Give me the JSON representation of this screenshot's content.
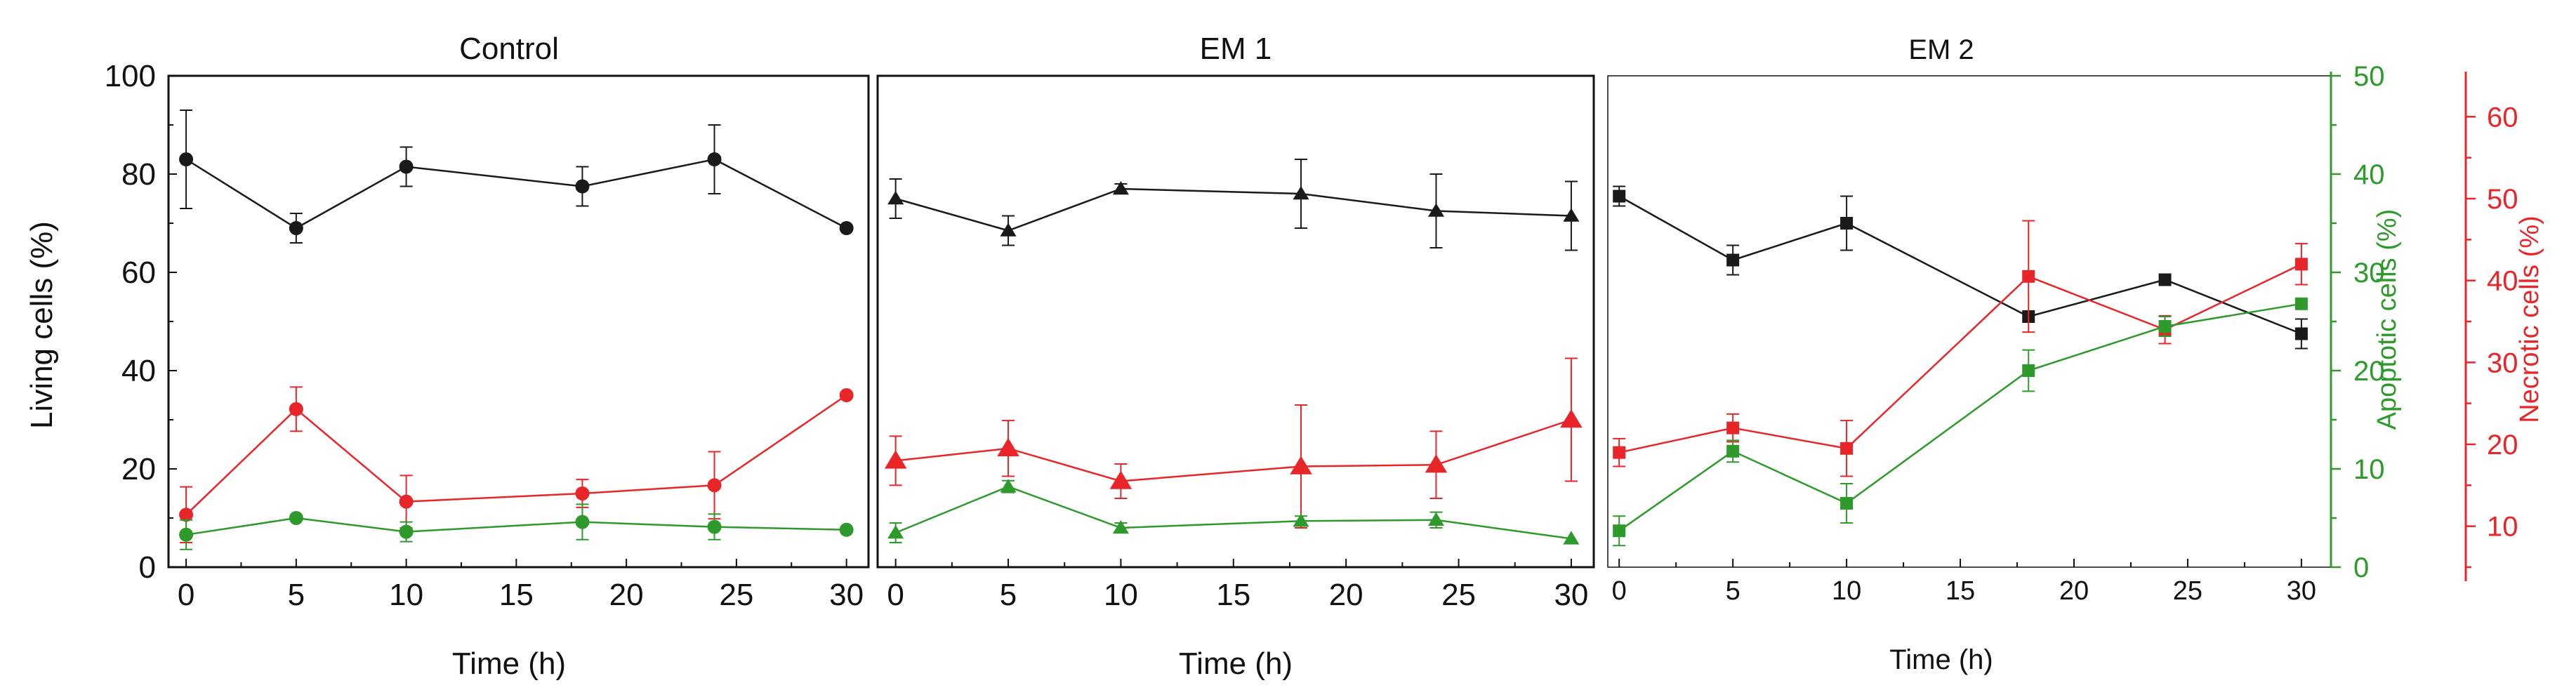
{
  "chart_data": [
    {
      "type": "line",
      "title": "Control",
      "xlabel": "Time (h)",
      "ylabel": "Living cells (%)",
      "xlim": [
        -0.8,
        31
      ],
      "ylim": [
        0,
        100
      ],
      "xticks": [
        "0",
        "5",
        "10",
        "15",
        "20",
        "25",
        "30"
      ],
      "yticks": [
        "0",
        "20",
        "40",
        "60",
        "80",
        "100"
      ],
      "x": [
        0,
        5,
        10,
        18,
        24,
        30
      ],
      "series": [
        {
          "color": "#1a1a1a",
          "marker": "circle",
          "axis": "living",
          "values": [
            83,
            69,
            81.5,
            77.5,
            83,
            69
          ],
          "errors": [
            10,
            3,
            4,
            4,
            7,
            0
          ]
        },
        {
          "color": "#e8262a",
          "marker": "circle",
          "axis": "necrotic",
          "values": [
            11.4,
            24.3,
            13.0,
            14.0,
            15.0,
            26.0
          ],
          "errors": [
            3.4,
            2.7,
            3.2,
            1.7,
            4.1,
            0
          ]
        },
        {
          "color": "#2e9a2b",
          "marker": "circle",
          "axis": "apoptotic",
          "values": [
            3.3,
            5.0,
            3.6,
            4.6,
            4.1,
            3.8
          ],
          "errors": [
            1.5,
            0,
            1,
            1.8,
            1.3,
            0
          ]
        }
      ]
    },
    {
      "type": "line",
      "title": "EM 1",
      "xlabel": "Time (h)",
      "xlim": [
        -0.8,
        31
      ],
      "ylim": [
        0,
        100
      ],
      "xticks": [
        "0",
        "5",
        "10",
        "15",
        "20",
        "25",
        "30"
      ],
      "x": [
        0,
        5,
        10,
        18,
        24,
        30
      ],
      "series": [
        {
          "color": "#1a1a1a",
          "marker": "triangle",
          "axis": "living",
          "values": [
            75,
            68.5,
            77,
            76,
            72.5,
            71.5
          ],
          "errors": [
            4,
            3,
            1,
            7,
            7.5,
            7
          ]
        },
        {
          "color": "#e8262a",
          "marker": "triangle",
          "axis": "necrotic",
          "values": [
            18.0,
            19.5,
            15.5,
            17.3,
            17.5,
            23.0
          ],
          "errors": [
            3.0,
            3.4,
            2.1,
            7.5,
            4.1,
            7.5
          ]
        },
        {
          "color": "#2e9a2b",
          "marker": "triangle",
          "axis": "apoptotic",
          "values": [
            3.5,
            8.2,
            4.0,
            4.7,
            4.8,
            2.9
          ],
          "errors": [
            1,
            0.6,
            0.5,
            0.5,
            0.8,
            0
          ]
        }
      ]
    },
    {
      "type": "line",
      "title": "EM 2",
      "xlabel": "Time (h)",
      "y2label": "Apoptotic cells (%)",
      "y3label": "Necrotic cells (%)",
      "xlim": [
        -0.5,
        31.3
      ],
      "ylim_apoptotic": [
        0,
        50
      ],
      "ylim_necrotic": [
        5,
        65
      ],
      "xticks": [
        "0",
        "5",
        "10",
        "15",
        "20",
        "25",
        "30"
      ],
      "y2ticks": [
        "0",
        "10",
        "20",
        "30",
        "40",
        "50"
      ],
      "y3ticks": [
        "10",
        "20",
        "30",
        "40",
        "50",
        "60"
      ],
      "x": [
        0,
        5,
        10,
        18,
        24,
        30
      ],
      "series": [
        {
          "color": "#1a1a1a",
          "marker": "square",
          "axis": "living",
          "values": [
            75.5,
            62.5,
            70,
            51,
            58.5,
            47.5
          ],
          "errors": [
            2,
            3,
            5.5,
            0,
            0,
            3
          ]
        },
        {
          "color": "#e8262a",
          "marker": "square",
          "axis": "necrotic",
          "values": [
            19.0,
            22.0,
            19.5,
            40.5,
            34.0,
            42.0
          ],
          "errors": [
            1.7,
            1.7,
            3.4,
            6.8,
            1.7,
            2.5
          ]
        },
        {
          "color": "#2e9a2b",
          "marker": "square",
          "axis": "apoptotic",
          "values": [
            3.7,
            11.8,
            6.5,
            20.0,
            24.5,
            26.8
          ],
          "errors": [
            1.5,
            1.1,
            2,
            2.1,
            1,
            0
          ]
        }
      ]
    }
  ]
}
